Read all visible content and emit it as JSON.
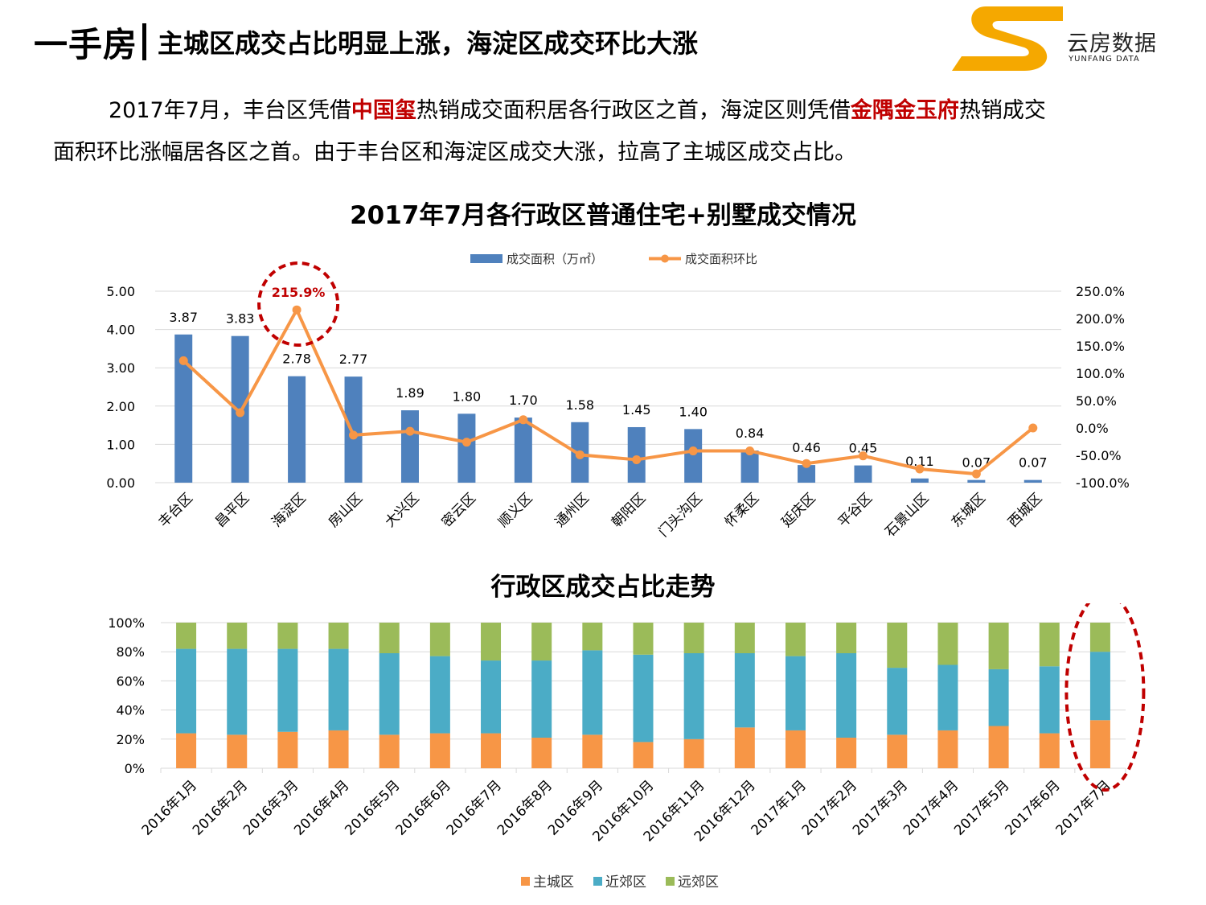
{
  "header": {
    "title": "一手房",
    "subtitle": "主城区成交占比明显上涨，海淀区成交环比大涨"
  },
  "logo": {
    "name": "云房数据",
    "name_en": "YUNFANG DATA",
    "colors": {
      "brand_orange": "#F5A800"
    }
  },
  "paragraph": {
    "l1_a": "2017年7月，丰台区凭借",
    "l1_hl1": "中国玺",
    "l1_b": "热销成交面积居各行政区之首，海淀区则凭借",
    "l1_hl2": "金隅金玉府",
    "l1_c": "热销成交",
    "l2": "面积环比涨幅居各区之首。由于丰台区和海淀区成交大涨，拉高了主城区成交占比。"
  },
  "chart_data": [
    {
      "type": "bar",
      "title": "2017年7月各行政区普通住宅+别墅成交情况",
      "categories": [
        "丰台区",
        "昌平区",
        "海淀区",
        "房山区",
        "大兴区",
        "密云区",
        "顺义区",
        "通州区",
        "朝阳区",
        "门头沟区",
        "怀柔区",
        "延庆区",
        "平谷区",
        "石景山区",
        "东城区",
        "西城区"
      ],
      "series": [
        {
          "name": "成交面积（万㎡）",
          "type": "bar",
          "axis": "left",
          "color": "#4F81BD",
          "values": [
            3.87,
            3.83,
            2.78,
            2.77,
            1.89,
            1.8,
            1.7,
            1.58,
            1.45,
            1.4,
            0.84,
            0.46,
            0.45,
            0.11,
            0.07,
            0.07
          ],
          "labels": [
            "3.87",
            "3.83",
            "2.78",
            "2.77",
            "1.89",
            "1.80",
            "1.70",
            "1.58",
            "1.45",
            "1.40",
            "0.84",
            "0.46",
            "0.45",
            "0.11",
            "0.07",
            "0.07"
          ]
        },
        {
          "name": "成交面积环比",
          "type": "line",
          "axis": "right",
          "color": "#F79646",
          "values": [
            123,
            28,
            215.9,
            -13,
            -6,
            -26,
            15,
            -49,
            -58,
            -42,
            -42,
            -65,
            -51,
            -75,
            -84,
            0
          ]
        }
      ],
      "y_left": {
        "min": 0,
        "max": 5,
        "ticks": [
          "0.00",
          "1.00",
          "2.00",
          "3.00",
          "4.00",
          "5.00"
        ]
      },
      "y_right": {
        "min": -100,
        "max": 250,
        "ticks": [
          "-100.0%",
          "-50.0%",
          "0.0%",
          "50.0%",
          "100.0%",
          "150.0%",
          "200.0%",
          "250.0%"
        ]
      },
      "annotation": {
        "label": "215.9%",
        "category": "海淀区",
        "color": "#C00000"
      },
      "legend": "top",
      "grid": true
    },
    {
      "type": "bar",
      "stacked": true,
      "title": "行政区成交占比走势",
      "categories": [
        "2016年1月",
        "2016年2月",
        "2016年3月",
        "2016年4月",
        "2016年5月",
        "2016年6月",
        "2016年7月",
        "2016年8月",
        "2016年9月",
        "2016年10月",
        "2016年11月",
        "2016年12月",
        "2017年1月",
        "2017年2月",
        "2017年3月",
        "2017年4月",
        "2017年5月",
        "2017年6月",
        "2017年7月"
      ],
      "series": [
        {
          "name": "主城区",
          "color": "#F79646",
          "values": [
            24,
            23,
            25,
            26,
            23,
            24,
            24,
            21,
            23,
            18,
            20,
            28,
            26,
            21,
            23,
            26,
            29,
            24,
            33
          ]
        },
        {
          "name": "近郊区",
          "color": "#4BACC6",
          "values": [
            58,
            59,
            57,
            56,
            56,
            53,
            50,
            53,
            58,
            60,
            59,
            51,
            51,
            58,
            46,
            45,
            39,
            46,
            47
          ]
        },
        {
          "name": "远郊区",
          "color": "#9BBB59",
          "values": [
            18,
            18,
            18,
            18,
            21,
            23,
            26,
            26,
            19,
            22,
            21,
            21,
            23,
            21,
            31,
            29,
            32,
            30,
            20
          ]
        }
      ],
      "y": {
        "min": 0,
        "max": 100,
        "ticks": [
          "0%",
          "20%",
          "40%",
          "60%",
          "80%",
          "100%"
        ]
      },
      "legend": "bottom",
      "grid": true
    }
  ]
}
